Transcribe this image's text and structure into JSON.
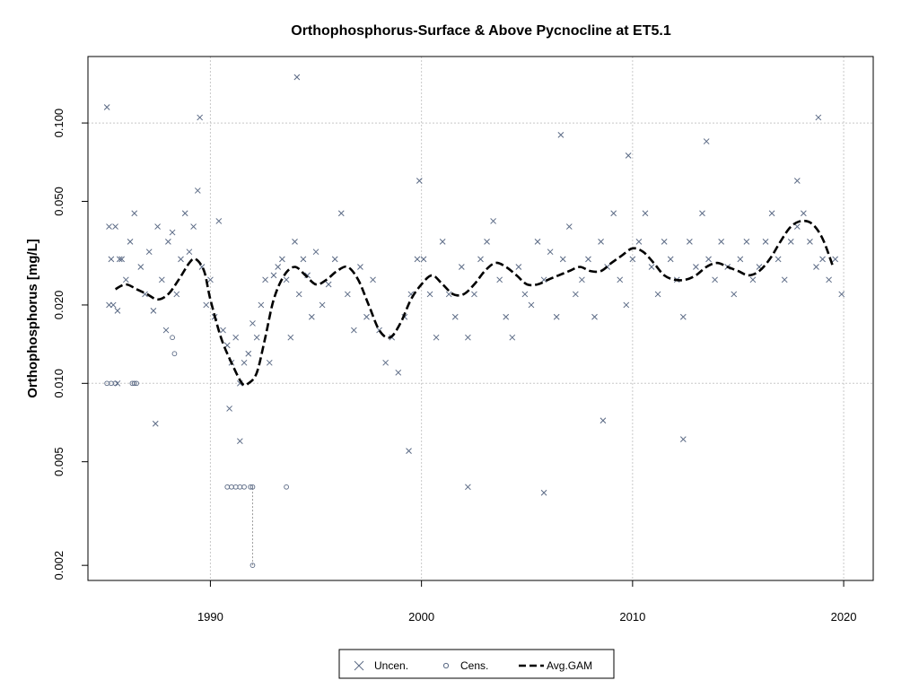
{
  "chart_data": {
    "type": "scatter",
    "title": "Orthophosphorus-Surface & Above Pycnocline at ET5.1",
    "xlabel": "",
    "ylabel": "Orthophosphorus [mg/L]",
    "y_scale": "log",
    "xlim": [
      1984.2,
      2021.4
    ],
    "ylim": [
      0.00175,
      0.18
    ],
    "x_ticks": [
      1990,
      2000,
      2010,
      2020
    ],
    "x_tick_labels": [
      "1990",
      "2000",
      "2010",
      "2020"
    ],
    "y_ticks": [
      0.002,
      0.005,
      0.01,
      0.02,
      0.05,
      0.1
    ],
    "y_tick_labels": [
      "0.002",
      "0.005",
      "0.010",
      "0.020",
      "0.050",
      "0.100"
    ],
    "grid_x": [
      1990,
      2000,
      2010,
      2020
    ],
    "grid_y": [
      0.01,
      0.1
    ],
    "grid": true,
    "legend_position": "bottom-center",
    "colors": {
      "points": "#5b6a85",
      "gam": "#000000",
      "grid": "#c8c8c8"
    },
    "series": [
      {
        "name": "Uncen.",
        "marker": "x",
        "x": [
          1985.2,
          1985.2,
          1985.3,
          1985.4,
          1985.5,
          1985.6,
          1985.7,
          1985.8,
          1986.0,
          1986.2,
          1986.4,
          1986.7,
          1986.9,
          1987.1,
          1987.3,
          1987.5,
          1987.7,
          1987.9,
          1988.0,
          1988.2,
          1988.4,
          1988.6,
          1988.8,
          1989.0,
          1989.2,
          1989.4,
          1989.6,
          1989.8,
          1990.0,
          1990.2,
          1990.4,
          1990.6,
          1990.8,
          1991.0,
          1991.2,
          1991.4,
          1991.6,
          1991.8,
          1992.0,
          1992.2,
          1992.4,
          1992.6,
          1992.8,
          1993.0,
          1993.2,
          1993.4,
          1993.6,
          1993.8,
          1994.0,
          1994.2,
          1994.4,
          1994.6,
          1994.8,
          1995.0,
          1995.3,
          1995.6,
          1995.9,
          1996.2,
          1996.5,
          1996.8,
          1997.1,
          1997.4,
          1997.7,
          1998.0,
          1998.3,
          1998.6,
          1998.9,
          1999.2,
          1999.5,
          1999.8,
          2000.1,
          2000.4,
          2000.7,
          2001.0,
          2001.3,
          2001.6,
          2001.9,
          2002.2,
          2002.5,
          2002.8,
          2003.1,
          2003.4,
          2003.7,
          2004.0,
          2004.3,
          2004.6,
          2004.9,
          2005.2,
          2005.5,
          2005.8,
          2006.1,
          2006.4,
          2006.7,
          2007.0,
          2007.3,
          2007.6,
          2007.9,
          2008.2,
          2008.5,
          2008.8,
          2009.1,
          2009.4,
          2009.7,
          2010.0,
          2010.3,
          2010.6,
          2010.9,
          2011.2,
          2011.5,
          2011.8,
          2012.1,
          2012.4,
          2012.7,
          2013.0,
          2013.3,
          2013.6,
          2013.9,
          2014.2,
          2014.5,
          2014.8,
          2015.1,
          2015.4,
          2015.7,
          2016.0,
          2016.3,
          2016.6,
          2016.9,
          2017.2,
          2017.5,
          2017.8,
          2018.1,
          2018.4,
          2018.7,
          2019.0,
          2019.3,
          2019.6,
          2019.9,
          1985.1,
          1989.5,
          1994.1,
          2018.8,
          1990.9,
          1991.4,
          1999.4,
          2002.2,
          2005.8,
          2008.6,
          2012.4,
          1985.6,
          1987.4,
          1999.9,
          2006.6,
          2009.8,
          2013.5,
          2017.8
        ],
        "y": [
          0.04,
          0.02,
          0.03,
          0.02,
          0.04,
          0.019,
          0.03,
          0.03,
          0.025,
          0.035,
          0.045,
          0.028,
          0.022,
          0.032,
          0.019,
          0.04,
          0.025,
          0.016,
          0.035,
          0.038,
          0.022,
          0.03,
          0.045,
          0.032,
          0.04,
          0.055,
          0.028,
          0.02,
          0.025,
          0.018,
          0.042,
          0.016,
          0.014,
          0.012,
          0.015,
          0.01,
          0.012,
          0.013,
          0.017,
          0.015,
          0.02,
          0.025,
          0.012,
          0.026,
          0.028,
          0.03,
          0.025,
          0.015,
          0.035,
          0.022,
          0.03,
          0.026,
          0.018,
          0.032,
          0.02,
          0.024,
          0.03,
          0.045,
          0.022,
          0.016,
          0.028,
          0.018,
          0.025,
          0.016,
          0.012,
          0.015,
          0.011,
          0.018,
          0.022,
          0.03,
          0.03,
          0.022,
          0.015,
          0.035,
          0.022,
          0.018,
          0.028,
          0.015,
          0.022,
          0.03,
          0.035,
          0.042,
          0.025,
          0.018,
          0.015,
          0.028,
          0.022,
          0.02,
          0.035,
          0.025,
          0.032,
          0.018,
          0.03,
          0.04,
          0.022,
          0.025,
          0.03,
          0.018,
          0.035,
          0.028,
          0.045,
          0.025,
          0.02,
          0.03,
          0.035,
          0.045,
          0.028,
          0.022,
          0.035,
          0.03,
          0.025,
          0.018,
          0.035,
          0.028,
          0.045,
          0.03,
          0.025,
          0.035,
          0.028,
          0.022,
          0.03,
          0.035,
          0.025,
          0.028,
          0.035,
          0.045,
          0.03,
          0.025,
          0.035,
          0.04,
          0.045,
          0.035,
          0.028,
          0.03,
          0.025,
          0.03,
          0.022,
          0.115,
          0.105,
          0.15,
          0.105,
          0.008,
          0.006,
          0.0055,
          0.004,
          0.0038,
          0.0072,
          0.0061,
          0.01,
          0.007,
          0.06,
          0.09,
          0.075,
          0.085,
          0.06
        ]
      },
      {
        "name": "Cens.",
        "marker": "circle",
        "x": [
          1985.1,
          1985.3,
          1985.5,
          1986.3,
          1986.4,
          1986.5,
          1988.2,
          1988.3,
          1990.8,
          1991.0,
          1991.2,
          1991.4,
          1991.6,
          1991.9,
          1992.0,
          1993.6
        ],
        "y": [
          0.01,
          0.01,
          0.01,
          0.01,
          0.01,
          0.01,
          0.015,
          0.013,
          0.004,
          0.004,
          0.004,
          0.004,
          0.004,
          0.004,
          0.002,
          0.004
        ],
        "upper": [
          null,
          null,
          null,
          null,
          null,
          null,
          0.015,
          0.013,
          null,
          null,
          null,
          null,
          null,
          0.004,
          0.004,
          null
        ]
      },
      {
        "name": "Avg.GAM",
        "line_style": "dashed",
        "x": [
          1985.5,
          1986.0,
          1986.5,
          1987.0,
          1987.5,
          1988.0,
          1988.5,
          1989.0,
          1989.3,
          1989.7,
          1990.0,
          1990.5,
          1991.0,
          1991.5,
          1991.8,
          1992.2,
          1992.6,
          1993.0,
          1993.5,
          1994.0,
          1994.5,
          1995.0,
          1995.5,
          1996.0,
          1996.5,
          1997.0,
          1997.5,
          1998.0,
          1998.5,
          1999.0,
          1999.5,
          2000.0,
          2000.5,
          2001.0,
          2001.5,
          2002.0,
          2002.5,
          2003.0,
          2003.5,
          2004.0,
          2004.5,
          2005.0,
          2005.5,
          2006.0,
          2006.5,
          2007.0,
          2007.5,
          2008.0,
          2008.5,
          2009.0,
          2009.5,
          2010.0,
          2010.5,
          2011.0,
          2011.5,
          2012.0,
          2012.5,
          2013.0,
          2013.5,
          2014.0,
          2014.5,
          2015.0,
          2015.5,
          2016.0,
          2016.5,
          2017.0,
          2017.5,
          2018.0,
          2018.5,
          2019.0,
          2019.5
        ],
        "y": [
          0.023,
          0.024,
          0.023,
          0.022,
          0.021,
          0.022,
          0.025,
          0.029,
          0.03,
          0.027,
          0.021,
          0.015,
          0.012,
          0.01,
          0.01,
          0.011,
          0.015,
          0.021,
          0.026,
          0.028,
          0.026,
          0.024,
          0.025,
          0.027,
          0.028,
          0.025,
          0.02,
          0.016,
          0.015,
          0.017,
          0.021,
          0.024,
          0.026,
          0.024,
          0.022,
          0.022,
          0.024,
          0.027,
          0.029,
          0.028,
          0.026,
          0.024,
          0.024,
          0.025,
          0.026,
          0.027,
          0.028,
          0.027,
          0.027,
          0.029,
          0.031,
          0.033,
          0.032,
          0.029,
          0.026,
          0.025,
          0.025,
          0.026,
          0.028,
          0.029,
          0.028,
          0.027,
          0.026,
          0.027,
          0.03,
          0.035,
          0.04,
          0.042,
          0.041,
          0.036,
          0.028
        ]
      }
    ]
  },
  "legend": {
    "items": [
      {
        "label": "Uncen.",
        "symbol": "x"
      },
      {
        "label": "Cens.",
        "symbol": "circle"
      },
      {
        "label": "Avg.GAM",
        "symbol": "dashed-line"
      }
    ]
  }
}
